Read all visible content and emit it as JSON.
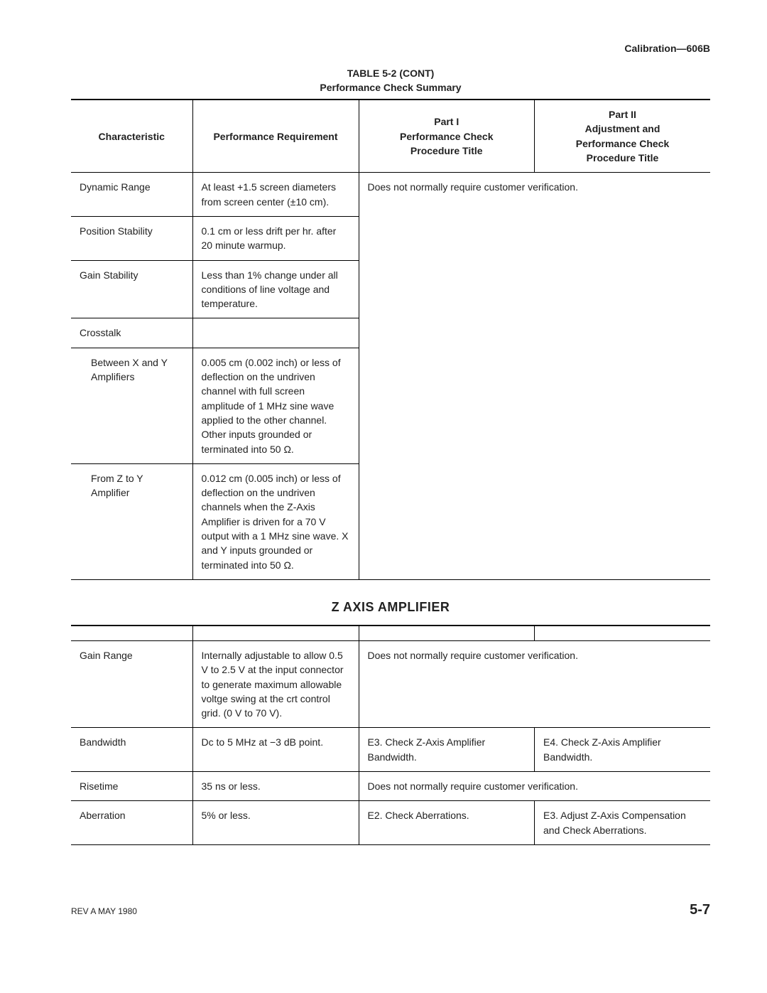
{
  "header": "Calibration—606B",
  "table_title_line1": "TABLE 5-2 (CONT)",
  "table_title_line2": "Performance Check Summary",
  "columns": {
    "c1": "Characteristic",
    "c2": "Performance Requirement",
    "c3": "Part I\nPerformance Check\nProcedure Title",
    "c4": "Part II\nAdjustment and\nPerformance Check\nProcedure Title"
  },
  "rows_a": [
    {
      "c1": "Dynamic Range",
      "c2": "At least +1.5 screen diameters from screen center (±10 cm).",
      "c34": "Does not normally require customer verification."
    },
    {
      "c1": "Position Stability",
      "c2": "0.1 cm or less drift per hr. after 20 minute warmup.",
      "c34": ""
    },
    {
      "c1": "Gain Stability",
      "c2": "Less than 1% change under all conditions of line voltage and temperature.",
      "c34": ""
    },
    {
      "c1": "Crosstalk",
      "c2": "",
      "c34": ""
    },
    {
      "c1": "Between X and Y Amplifiers",
      "indent": true,
      "c2": "0.005 cm (0.002 inch) or less of deflection on the undriven channel with full screen amplitude of 1 MHz sine wave applied to the other channel. Other inputs grounded or terminated into 50 Ω.",
      "c34": ""
    },
    {
      "c1": "From Z to Y Amplifier",
      "indent": true,
      "c2": "0.012 cm (0.005 inch) or less of deflection on the undriven channels when the Z-Axis Amplifier is driven for a 70 V output with a 1 MHz sine wave. X and Y inputs grounded or terminated into 50 Ω.",
      "c34": ""
    }
  ],
  "section_heading": "Z AXIS AMPLIFIER",
  "rows_b": [
    {
      "c1": "Gain Range",
      "c2": "Internally adjustable to allow 0.5 V to 2.5 V at the input connector to generate maximum allowable voltge swing at the crt control grid. (0 V to 70 V).",
      "merged": true,
      "c34": "Does not normally require customer verification."
    },
    {
      "c1": "Bandwidth",
      "c2": "Dc to 5 MHz at −3 dB point.",
      "merged": false,
      "c3": "E3. Check Z-Axis Amplifier Bandwidth.",
      "c4": "E4. Check Z-Axis Amplifier Bandwidth."
    },
    {
      "c1": "Risetime",
      "c2": "35 ns or less.",
      "merged": true,
      "c34": "Does not normally require customer verification."
    },
    {
      "c1": "Aberration",
      "c2": "5% or less.",
      "merged": false,
      "c3": "E2. Check Aberrations.",
      "c4": "E3. Adjust Z-Axis Compensation and Check Aberrations."
    }
  ],
  "footer_left": "REV A MAY 1980",
  "footer_right": "5-7"
}
